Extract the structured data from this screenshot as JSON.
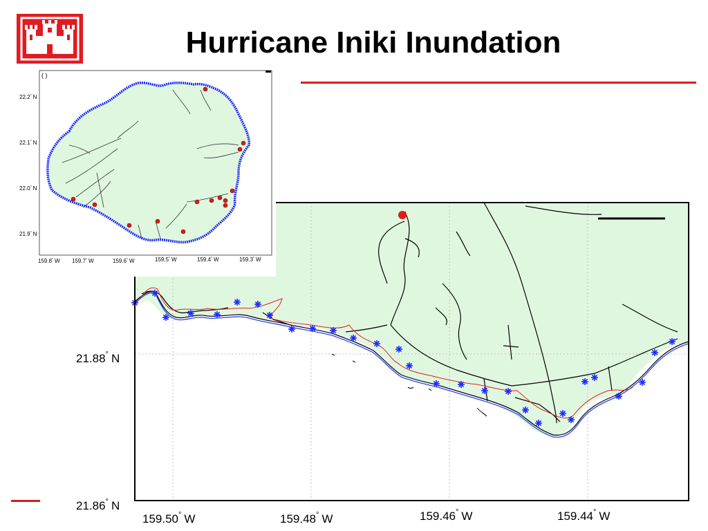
{
  "title": "Hurricane Iniki Inundation",
  "logo": {
    "name": "castle-icon",
    "color": "#e11b22"
  },
  "accent_color": "#d91c1c",
  "land_color": "#e0f7df",
  "main_map": {
    "lat_labels": [
      {
        "deg": "21.88",
        "dir": "N"
      },
      {
        "deg": "21.86",
        "dir": "N"
      }
    ],
    "lon_labels": [
      {
        "deg": "159.50",
        "dir": "W"
      },
      {
        "deg": "159.48",
        "dir": "W"
      },
      {
        "deg": "159.46",
        "dir": "W"
      },
      {
        "deg": "159.44",
        "dir": "W"
      }
    ],
    "degree_symbol": "°"
  },
  "inset_map": {
    "corner_label": "( )",
    "lat_labels": [
      {
        "deg": "22.2",
        "dir": "N"
      },
      {
        "deg": "22.1",
        "dir": "N"
      },
      {
        "deg": "22.0",
        "dir": "N"
      },
      {
        "deg": "21.9",
        "dir": "N"
      }
    ],
    "lon_labels": [
      {
        "deg": "159.8",
        "dir": "W"
      },
      {
        "deg": "159.7",
        "dir": "W"
      },
      {
        "deg": "159.6",
        "dir": "W"
      },
      {
        "deg": "159.5",
        "dir": "W"
      },
      {
        "deg": "159.4",
        "dir": "W"
      },
      {
        "deg": "159.3",
        "dir": "W"
      }
    ]
  }
}
